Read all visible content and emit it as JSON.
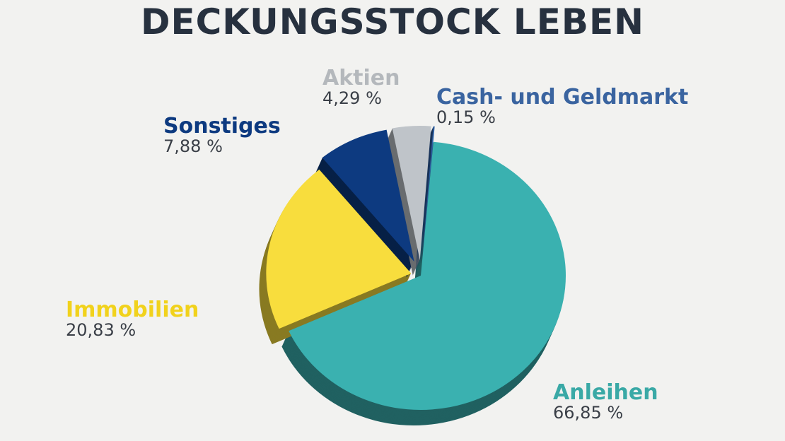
{
  "chart_data": {
    "type": "pie",
    "title": "DECKUNGSSTOCK LEBEN",
    "slices": [
      {
        "label": "Anleihen",
        "value": 66.85,
        "value_text": "66,85 %",
        "color": "#3ab1b0",
        "label_color": "#3aa9a6"
      },
      {
        "label": "Immobilien",
        "value": 20.83,
        "value_text": "20,83 %",
        "color": "#f8dd3d",
        "label_color": "#f1d21c"
      },
      {
        "label": "Sonstiges",
        "value": 7.88,
        "value_text": "7,88 %",
        "color": "#0d3a80",
        "label_color": "#0d3a80"
      },
      {
        "label": "Aktien",
        "value": 4.29,
        "value_text": "4,29 %",
        "color": "#bfc4c9",
        "label_color": "#b4b8bc"
      },
      {
        "label": "Cash- und Geldmarkt",
        "value": 0.15,
        "value_text": "0,15 %",
        "color": "#2d5fa3",
        "label_color": "#3a64a0"
      }
    ]
  }
}
